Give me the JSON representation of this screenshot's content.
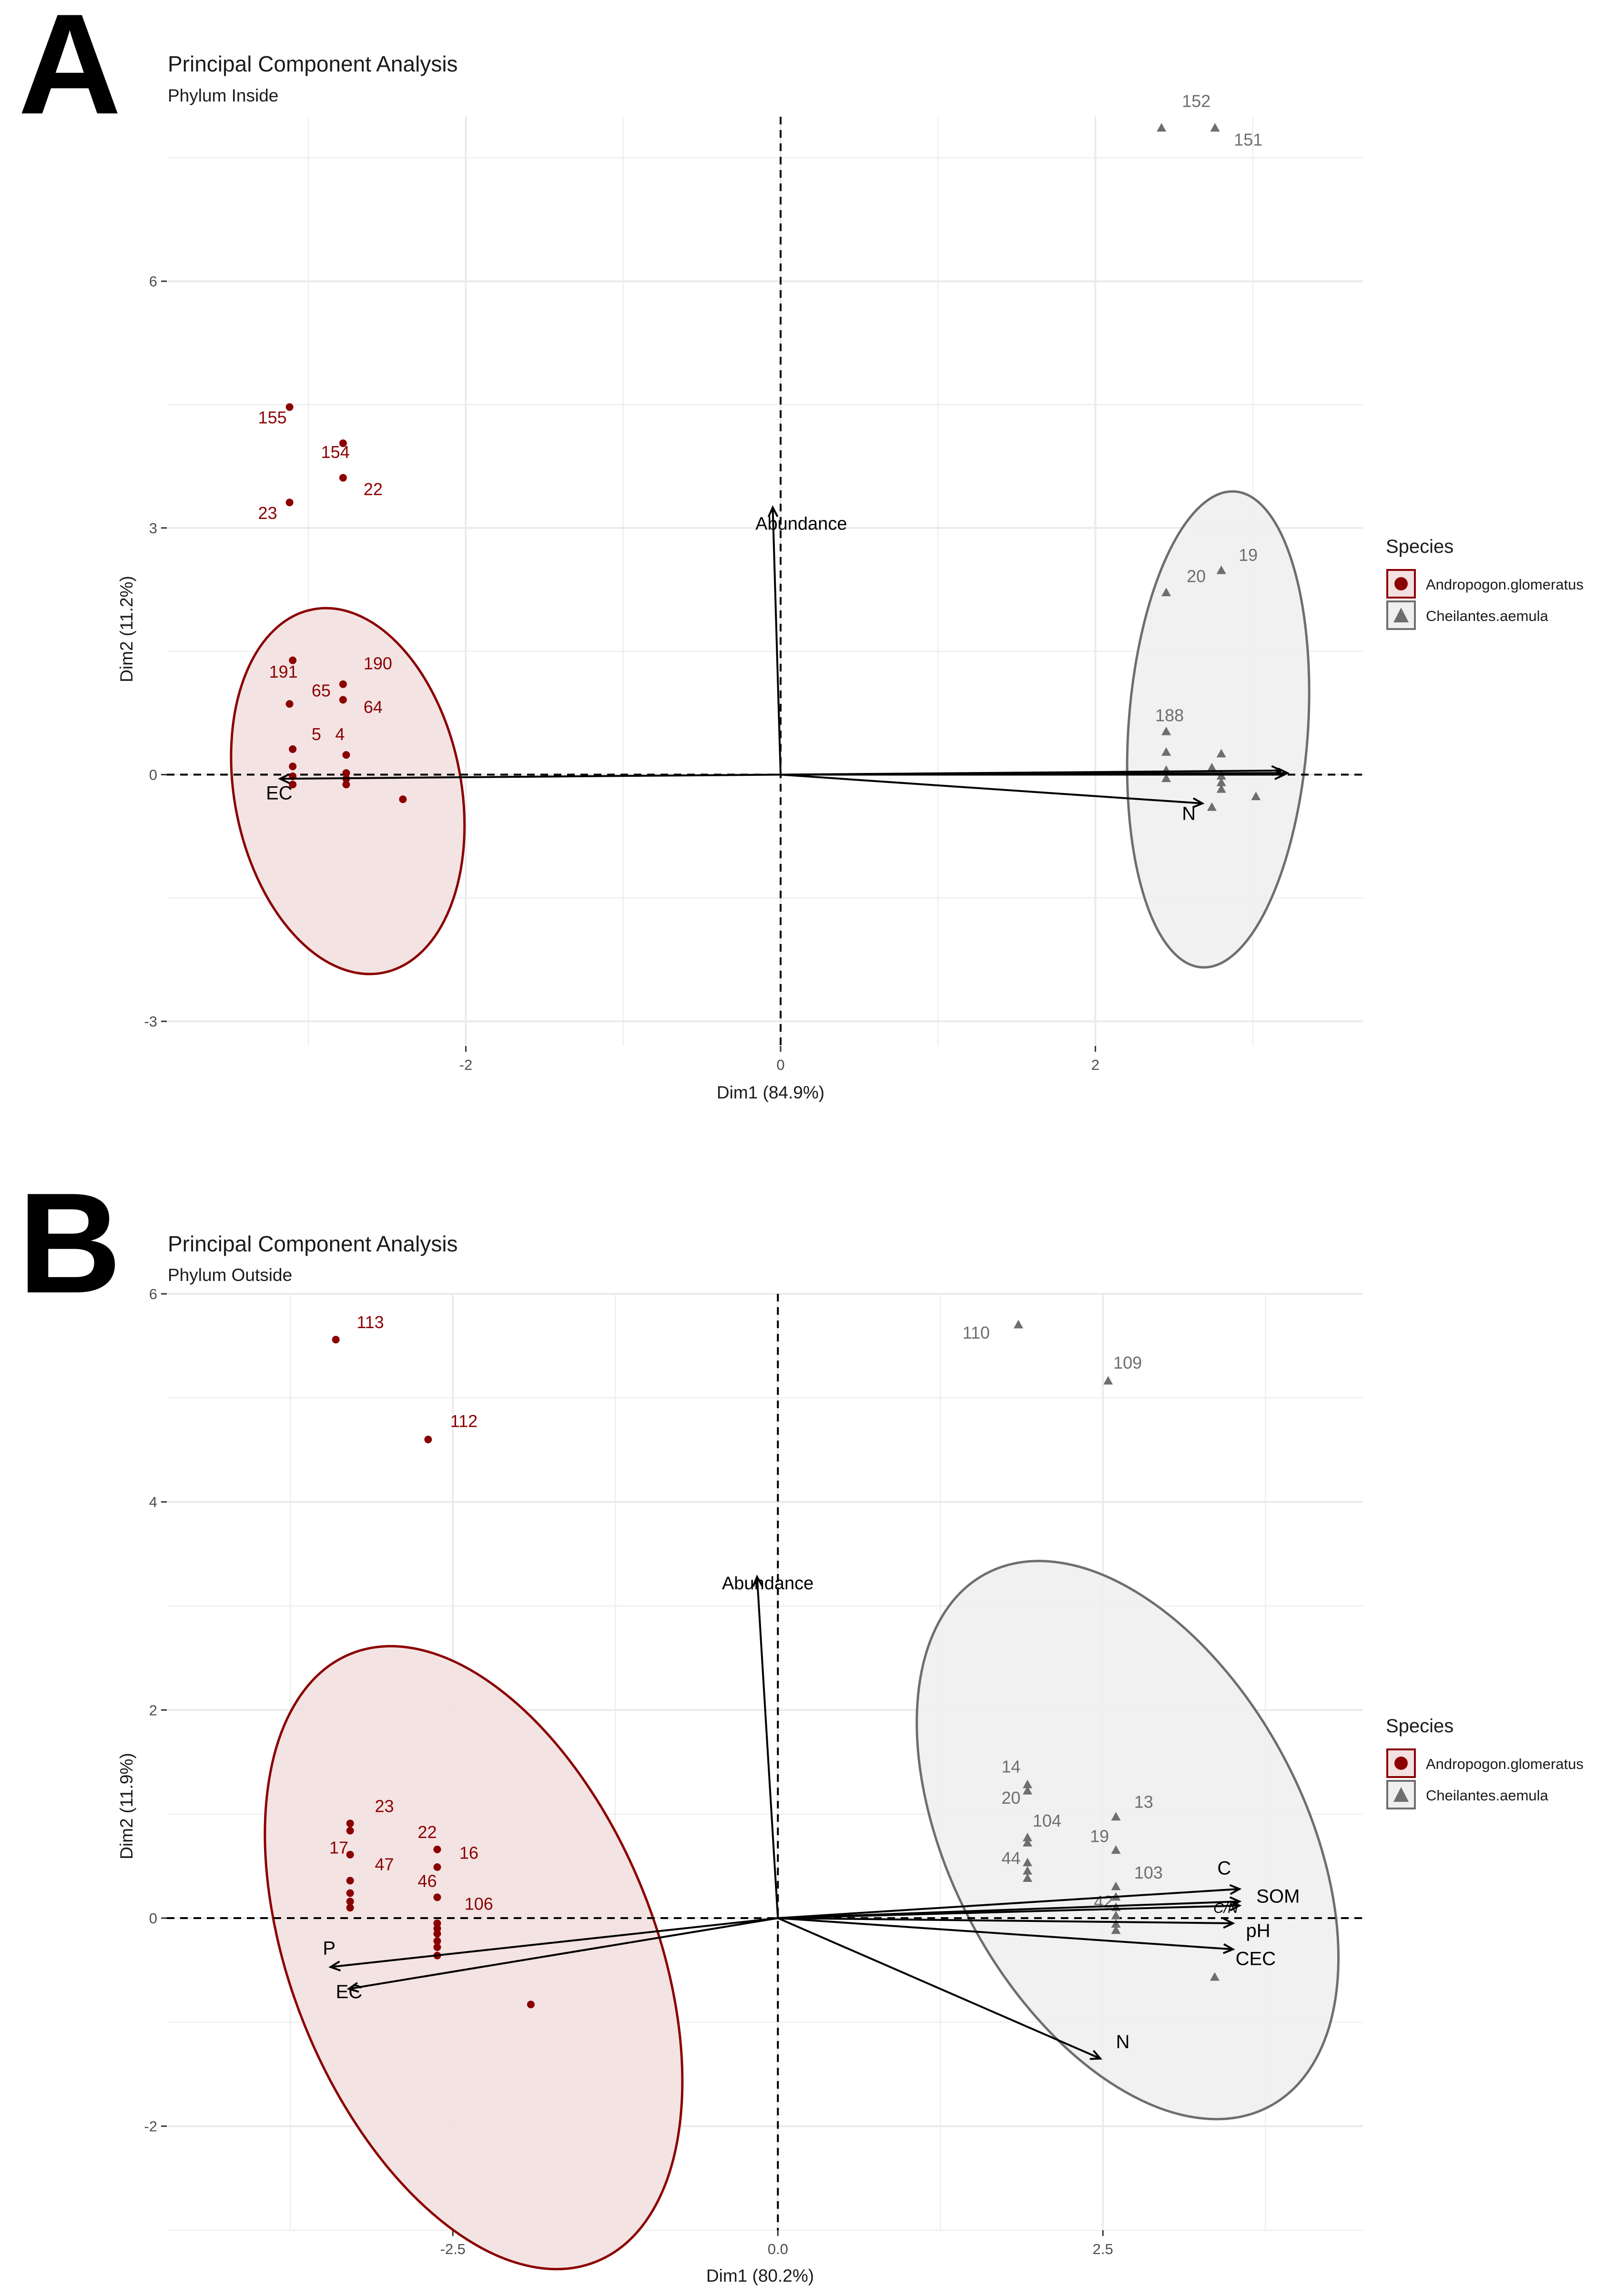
{
  "colors": {
    "andropogon": "#8b0000",
    "andropogon_fill": "#f3e0e0",
    "cheilantes": "#6e6e6e",
    "cheilantes_fill": "#efefef",
    "grid": "#ebebeb",
    "arrow": "#000000"
  },
  "chart_data": [
    {
      "type": "scatter",
      "panel": "A",
      "title": "Principal Component Analysis",
      "subtitle": "Phylum Inside",
      "xlabel": "Dim1 (84.9%)",
      "ylabel": "Dim2 (11.2%)",
      "xlim": [
        -3.9,
        3.7
      ],
      "ylim": [
        -3.3,
        8.0
      ],
      "xticks": [
        -2,
        0,
        2
      ],
      "xtick_labels": [
        "-2",
        "0",
        "2"
      ],
      "yticks": [
        -3,
        0,
        3,
        6
      ],
      "ytick_labels": [
        "-3",
        "0",
        "3",
        "6"
      ],
      "legend": {
        "title": "Species",
        "entries": [
          "Andropogon.glomeratus",
          "Cheilantes.aemula"
        ]
      },
      "series": [
        {
          "name": "Andropogon.glomeratus",
          "marker": "circle",
          "points": [
            {
              "x": -3.12,
              "y": 4.47,
              "label": ""
            },
            {
              "x": -2.78,
              "y": 4.03,
              "label": ""
            },
            {
              "x": -2.78,
              "y": 3.61,
              "label": ""
            },
            {
              "x": -3.12,
              "y": 3.31,
              "label": ""
            },
            {
              "x": -3.1,
              "y": 1.39,
              "label": ""
            },
            {
              "x": -2.78,
              "y": 1.1,
              "label": ""
            },
            {
              "x": -3.12,
              "y": 0.86,
              "label": ""
            },
            {
              "x": -2.78,
              "y": 0.91,
              "label": ""
            },
            {
              "x": -3.1,
              "y": 0.31,
              "label": ""
            },
            {
              "x": -2.76,
              "y": 0.24,
              "label": ""
            },
            {
              "x": -3.1,
              "y": 0.1,
              "label": ""
            },
            {
              "x": -3.1,
              "y": -0.02,
              "label": ""
            },
            {
              "x": -3.1,
              "y": -0.12,
              "label": ""
            },
            {
              "x": -2.76,
              "y": 0.02,
              "label": ""
            },
            {
              "x": -2.76,
              "y": -0.05,
              "label": ""
            },
            {
              "x": -2.76,
              "y": -0.12,
              "label": ""
            },
            {
              "x": -2.4,
              "y": -0.3,
              "label": ""
            }
          ],
          "labels": [
            {
              "x": -3.32,
              "y": 4.27,
              "text": "155"
            },
            {
              "x": -2.92,
              "y": 3.85,
              "text": "154"
            },
            {
              "x": -2.65,
              "y": 3.4,
              "text": "22"
            },
            {
              "x": -3.32,
              "y": 3.11,
              "text": "23"
            },
            {
              "x": -3.25,
              "y": 1.18,
              "text": "191"
            },
            {
              "x": -2.65,
              "y": 1.28,
              "text": "190"
            },
            {
              "x": -2.98,
              "y": 0.95,
              "text": "65"
            },
            {
              "x": -2.65,
              "y": 0.75,
              "text": "64"
            },
            {
              "x": -2.98,
              "y": 0.42,
              "text": "5"
            },
            {
              "x": -2.83,
              "y": 0.42,
              "text": "4"
            }
          ]
        },
        {
          "name": "Cheilantes.aemula",
          "marker": "triangle",
          "points": [
            {
              "x": 2.42,
              "y": 7.86,
              "label": ""
            },
            {
              "x": 2.76,
              "y": 7.86,
              "label": ""
            },
            {
              "x": 2.8,
              "y": 2.48,
              "label": ""
            },
            {
              "x": 2.45,
              "y": 2.21,
              "label": ""
            },
            {
              "x": 2.45,
              "y": 0.52,
              "label": ""
            },
            {
              "x": 2.45,
              "y": 0.27,
              "label": ""
            },
            {
              "x": 2.45,
              "y": 0.05,
              "label": ""
            },
            {
              "x": 2.45,
              "y": -0.05,
              "label": ""
            },
            {
              "x": 2.74,
              "y": 0.08,
              "label": ""
            },
            {
              "x": 2.8,
              "y": 0.25,
              "label": ""
            },
            {
              "x": 2.8,
              "y": -0.02,
              "label": ""
            },
            {
              "x": 2.8,
              "y": -0.1,
              "label": ""
            },
            {
              "x": 2.8,
              "y": -0.18,
              "label": ""
            },
            {
              "x": 2.74,
              "y": -0.4,
              "label": ""
            },
            {
              "x": 3.02,
              "y": -0.27,
              "label": ""
            }
          ],
          "labels": [
            {
              "x": 2.55,
              "y": 8.12,
              "text": "152"
            },
            {
              "x": 2.88,
              "y": 7.65,
              "text": "151"
            },
            {
              "x": 2.91,
              "y": 2.6,
              "text": "19"
            },
            {
              "x": 2.58,
              "y": 2.34,
              "text": "20"
            },
            {
              "x": 2.38,
              "y": 0.65,
              "text": "188"
            }
          ]
        }
      ],
      "ellipses": [
        {
          "series": "Andropogon.glomeratus",
          "cx": -2.75,
          "cy": -0.2,
          "rx": 0.72,
          "ry": 2.25,
          "angle_deg": -11
        },
        {
          "series": "Cheilantes.aemula",
          "cx": 2.78,
          "cy": 0.55,
          "rx": 0.57,
          "ry": 2.9,
          "angle_deg": 4
        }
      ],
      "arrows": [
        {
          "label": "Abundance",
          "x": -0.05,
          "y": 3.25,
          "lx": -0.16,
          "ly": 2.98
        },
        {
          "label": "EC",
          "x": -3.18,
          "y": -0.05,
          "lx": -3.27,
          "ly": -0.3
        },
        {
          "label": "N",
          "x": 2.68,
          "y": -0.35,
          "lx": 2.55,
          "ly": -0.55
        },
        {
          "label": "",
          "x": 3.22,
          "y": 0.02,
          "lx": 0,
          "ly": 0
        },
        {
          "label": "",
          "x": 3.18,
          "y": 0.05,
          "lx": 0,
          "ly": 0
        },
        {
          "label": "",
          "x": 3.2,
          "y": 0.0,
          "lx": 0,
          "ly": 0
        }
      ]
    },
    {
      "type": "scatter",
      "panel": "B",
      "title": "Principal Component Analysis",
      "subtitle": "Phylum Outside",
      "xlabel": "Dim1 (80.2%)",
      "ylabel": "Dim2 (11.9%)",
      "xlim": [
        -4.7,
        4.5
      ],
      "ylim": [
        -3.0,
        6.0
      ],
      "xticks": [
        -2.5,
        0.0,
        2.5
      ],
      "xtick_labels": [
        "-2.5",
        "0.0",
        "2.5"
      ],
      "yticks": [
        -2,
        0,
        2,
        4,
        6
      ],
      "ytick_labels": [
        "-2",
        "0",
        "2",
        "4",
        "6"
      ],
      "legend": {
        "title": "Species",
        "entries": [
          "Andropogon.glomeratus",
          "Cheilantes.aemula"
        ]
      },
      "series": [
        {
          "name": "Andropogon.glomeratus",
          "marker": "circle",
          "points": [
            {
              "x": -3.4,
              "y": 5.56,
              "label": ""
            },
            {
              "x": -2.69,
              "y": 4.6,
              "label": ""
            },
            {
              "x": -3.29,
              "y": 0.91,
              "label": ""
            },
            {
              "x": -3.29,
              "y": 0.84,
              "label": ""
            },
            {
              "x": -3.29,
              "y": 0.61,
              "label": ""
            },
            {
              "x": -3.29,
              "y": 0.36,
              "label": ""
            },
            {
              "x": -3.29,
              "y": 0.24,
              "label": ""
            },
            {
              "x": -3.29,
              "y": 0.16,
              "label": ""
            },
            {
              "x": -3.29,
              "y": 0.1,
              "label": ""
            },
            {
              "x": -2.62,
              "y": 0.66,
              "label": ""
            },
            {
              "x": -2.62,
              "y": 0.49,
              "label": ""
            },
            {
              "x": -2.62,
              "y": 0.2,
              "label": ""
            },
            {
              "x": -2.62,
              "y": -0.05,
              "label": ""
            },
            {
              "x": -2.62,
              "y": -0.1,
              "label": ""
            },
            {
              "x": -2.62,
              "y": -0.15,
              "label": ""
            },
            {
              "x": -2.62,
              "y": -0.22,
              "label": ""
            },
            {
              "x": -2.62,
              "y": -0.28,
              "label": ""
            },
            {
              "x": -2.62,
              "y": -0.36,
              "label": ""
            },
            {
              "x": -1.9,
              "y": -0.83,
              "label": ""
            }
          ],
          "labels": [
            {
              "x": -3.24,
              "y": 5.67,
              "text": "113"
            },
            {
              "x": -2.52,
              "y": 4.72,
              "text": "112"
            },
            {
              "x": -3.1,
              "y": 1.02,
              "text": "23"
            },
            {
              "x": -3.45,
              "y": 0.62,
              "text": "17"
            },
            {
              "x": -3.1,
              "y": 0.46,
              "text": "47"
            },
            {
              "x": -2.77,
              "y": 0.77,
              "text": "22"
            },
            {
              "x": -2.45,
              "y": 0.57,
              "text": "16"
            },
            {
              "x": -2.77,
              "y": 0.3,
              "text": "46"
            },
            {
              "x": -2.41,
              "y": 0.08,
              "text": "106"
            }
          ]
        },
        {
          "name": "Cheilantes.aemula",
          "marker": "triangle",
          "points": [
            {
              "x": 1.85,
              "y": 5.7,
              "label": ""
            },
            {
              "x": 2.54,
              "y": 5.16,
              "label": ""
            },
            {
              "x": 1.92,
              "y": 1.28,
              "label": ""
            },
            {
              "x": 1.92,
              "y": 1.22,
              "label": ""
            },
            {
              "x": 1.92,
              "y": 0.77,
              "label": ""
            },
            {
              "x": 1.92,
              "y": 0.72,
              "label": ""
            },
            {
              "x": 1.92,
              "y": 0.53,
              "label": ""
            },
            {
              "x": 1.92,
              "y": 0.45,
              "label": ""
            },
            {
              "x": 1.92,
              "y": 0.38,
              "label": ""
            },
            {
              "x": 2.6,
              "y": 0.97,
              "label": ""
            },
            {
              "x": 2.6,
              "y": 0.65,
              "label": ""
            },
            {
              "x": 2.6,
              "y": 0.3,
              "label": ""
            },
            {
              "x": 2.6,
              "y": 0.2,
              "label": ""
            },
            {
              "x": 2.6,
              "y": 0.1,
              "label": ""
            },
            {
              "x": 2.6,
              "y": 0.02,
              "label": ""
            },
            {
              "x": 2.6,
              "y": -0.06,
              "label": ""
            },
            {
              "x": 2.6,
              "y": -0.12,
              "label": ""
            },
            {
              "x": 3.36,
              "y": -0.57,
              "label": ""
            }
          ],
          "labels": [
            {
              "x": 1.42,
              "y": 5.57,
              "text": "110"
            },
            {
              "x": 2.58,
              "y": 5.28,
              "text": "109"
            },
            {
              "x": 1.72,
              "y": 1.4,
              "text": "14"
            },
            {
              "x": 1.72,
              "y": 1.1,
              "text": "20"
            },
            {
              "x": 1.96,
              "y": 0.88,
              "text": "104"
            },
            {
              "x": 2.4,
              "y": 0.73,
              "text": "19"
            },
            {
              "x": 2.74,
              "y": 1.06,
              "text": "13"
            },
            {
              "x": 1.72,
              "y": 0.52,
              "text": "44"
            },
            {
              "x": 2.74,
              "y": 0.38,
              "text": "103"
            },
            {
              "x": 2.43,
              "y": 0.1,
              "text": "42"
            }
          ]
        }
      ],
      "ellipses": [
        {
          "series": "Andropogon.glomeratus",
          "cx": -2.34,
          "cy": -0.38,
          "rx": 1.4,
          "ry": 3.15,
          "angle_deg": -22
        },
        {
          "series": "Cheilantes.aemula",
          "cx": 2.69,
          "cy": 0.75,
          "rx": 1.36,
          "ry": 2.9,
          "angle_deg": -28
        }
      ],
      "arrows": [
        {
          "label": "Abundance",
          "x": -0.16,
          "y": 3.28,
          "lx": -0.43,
          "ly": 3.16
        },
        {
          "label": "P",
          "x": -3.44,
          "y": -0.47,
          "lx": -3.5,
          "ly": -0.35
        },
        {
          "label": "EC",
          "x": -3.3,
          "y": -0.68,
          "lx": -3.4,
          "ly": -0.77
        },
        {
          "label": "N",
          "x": 2.48,
          "y": -1.35,
          "lx": 2.6,
          "ly": -1.25
        },
        {
          "label": "C",
          "x": 3.55,
          "y": 0.28,
          "lx": 3.38,
          "ly": 0.42
        },
        {
          "label": "SOM",
          "x": 3.55,
          "y": 0.16,
          "lx": 3.68,
          "ly": 0.15
        },
        {
          "label": "C/N",
          "x": 3.55,
          "y": 0.12,
          "lx": 3.35,
          "ly": 0.05
        },
        {
          "label": "pH",
          "x": 3.5,
          "y": -0.05,
          "lx": 3.6,
          "ly": -0.18
        },
        {
          "label": "CEC",
          "x": 3.5,
          "y": -0.3,
          "lx": 3.52,
          "ly": -0.45
        }
      ]
    }
  ]
}
